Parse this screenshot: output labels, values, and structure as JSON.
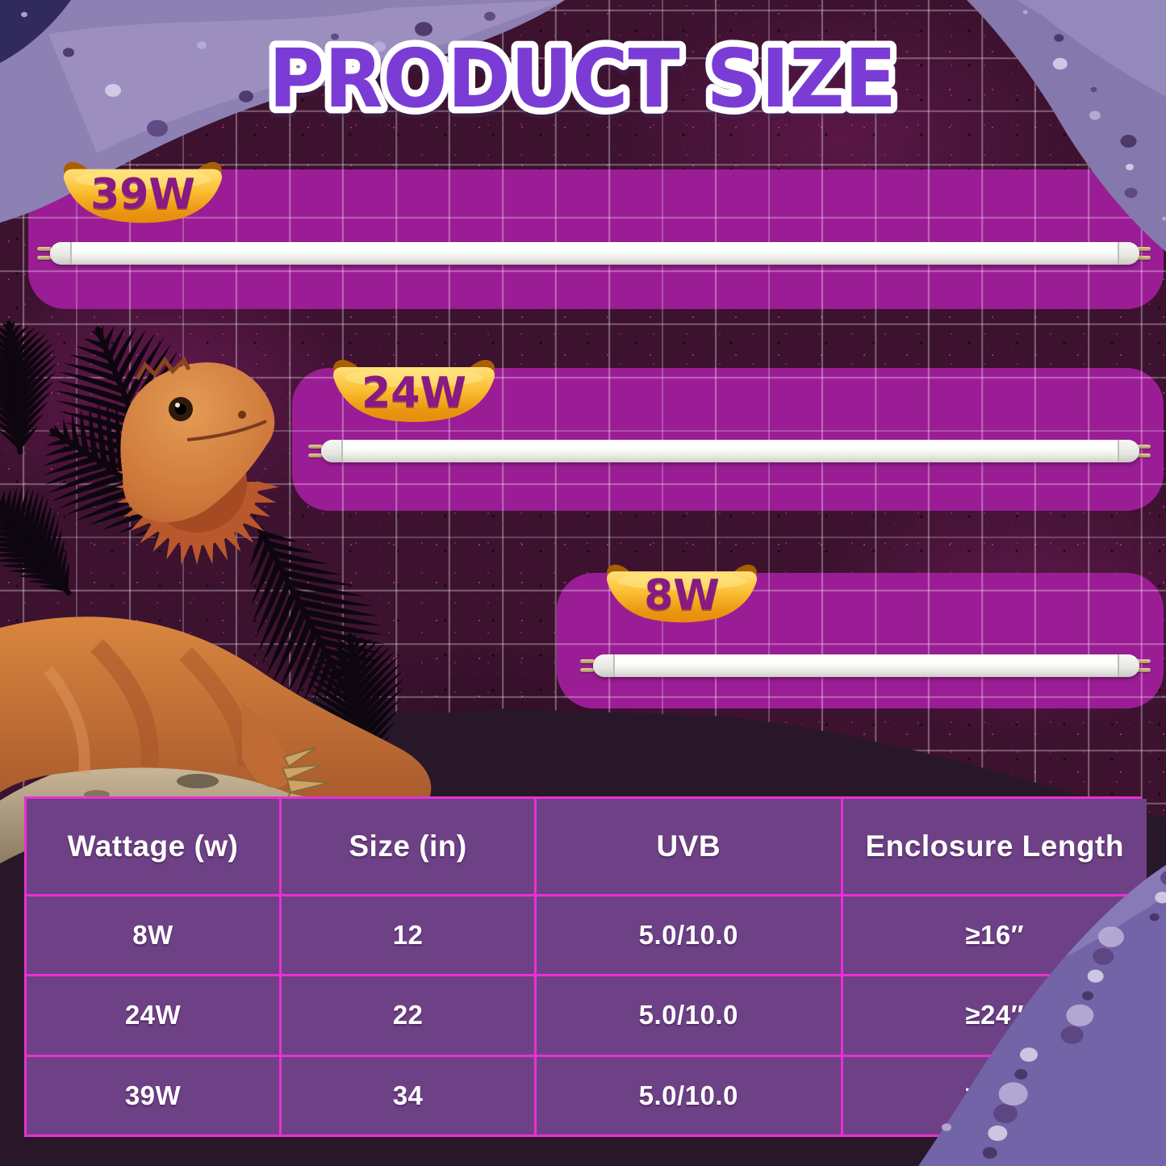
{
  "title": "PRODUCT SIZE",
  "products": [
    {
      "wattage_label": "39W"
    },
    {
      "wattage_label": "24W"
    },
    {
      "wattage_label": "8W"
    }
  ],
  "table": {
    "headers": [
      "Wattage (w)",
      "Size (in)",
      "UVB",
      "Enclosure Length"
    ],
    "rows": [
      [
        "8W",
        "12",
        "5.0/10.0",
        "≥16″"
      ],
      [
        "24W",
        "22",
        "5.0/10.0",
        "≥24″"
      ],
      [
        "39W",
        "34",
        "5.0/10.0",
        "≥36″"
      ]
    ]
  },
  "colors": {
    "background": "#3c122f",
    "panel_magenta": "#9b1d95",
    "title_purple": "#7b3cd6",
    "banner_gold": "#f6b82a",
    "banner_text": "#871a83",
    "table_cell": "#6e4187",
    "table_border": "#ea30d2",
    "text_white": "#ffffff"
  }
}
